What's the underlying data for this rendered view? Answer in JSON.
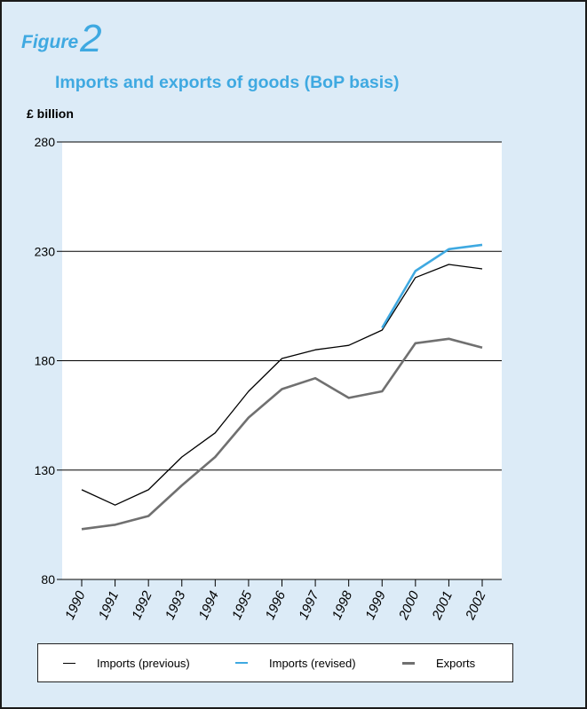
{
  "figure": {
    "word": "Figure",
    "number": "2"
  },
  "colors": {
    "background": "#dcebf7",
    "accent": "#3fa9e1",
    "previous": "#000000",
    "revised": "#3fa9e1",
    "exports": "#707070"
  },
  "chart_data": {
    "type": "line",
    "title": "Imports and exports of goods (BoP basis)",
    "ylabel": "£ billion",
    "xlabel": "",
    "ylim": [
      80,
      280
    ],
    "yticks": [
      80,
      130,
      180,
      230,
      280
    ],
    "grid": "horizontal",
    "legend_position": "bottom",
    "categories": [
      "1990",
      "1991",
      "1992",
      "1993",
      "1994",
      "1995",
      "1996",
      "1997",
      "1998",
      "1999",
      "2000",
      "2001",
      "2002"
    ],
    "series": [
      {
        "name": "Imports (previous)",
        "color": "#000000",
        "values": [
          121,
          114,
          121,
          136,
          147,
          166,
          181,
          185,
          187,
          194,
          218,
          224,
          222
        ]
      },
      {
        "name": "Imports (revised)",
        "color": "#3fa9e1",
        "values": [
          null,
          null,
          null,
          null,
          null,
          null,
          null,
          null,
          null,
          195,
          221,
          231,
          233
        ]
      },
      {
        "name": "Exports",
        "color": "#707070",
        "values": [
          103,
          105,
          109,
          123,
          136,
          154,
          167,
          172,
          163,
          166,
          188,
          190,
          186
        ]
      }
    ]
  }
}
